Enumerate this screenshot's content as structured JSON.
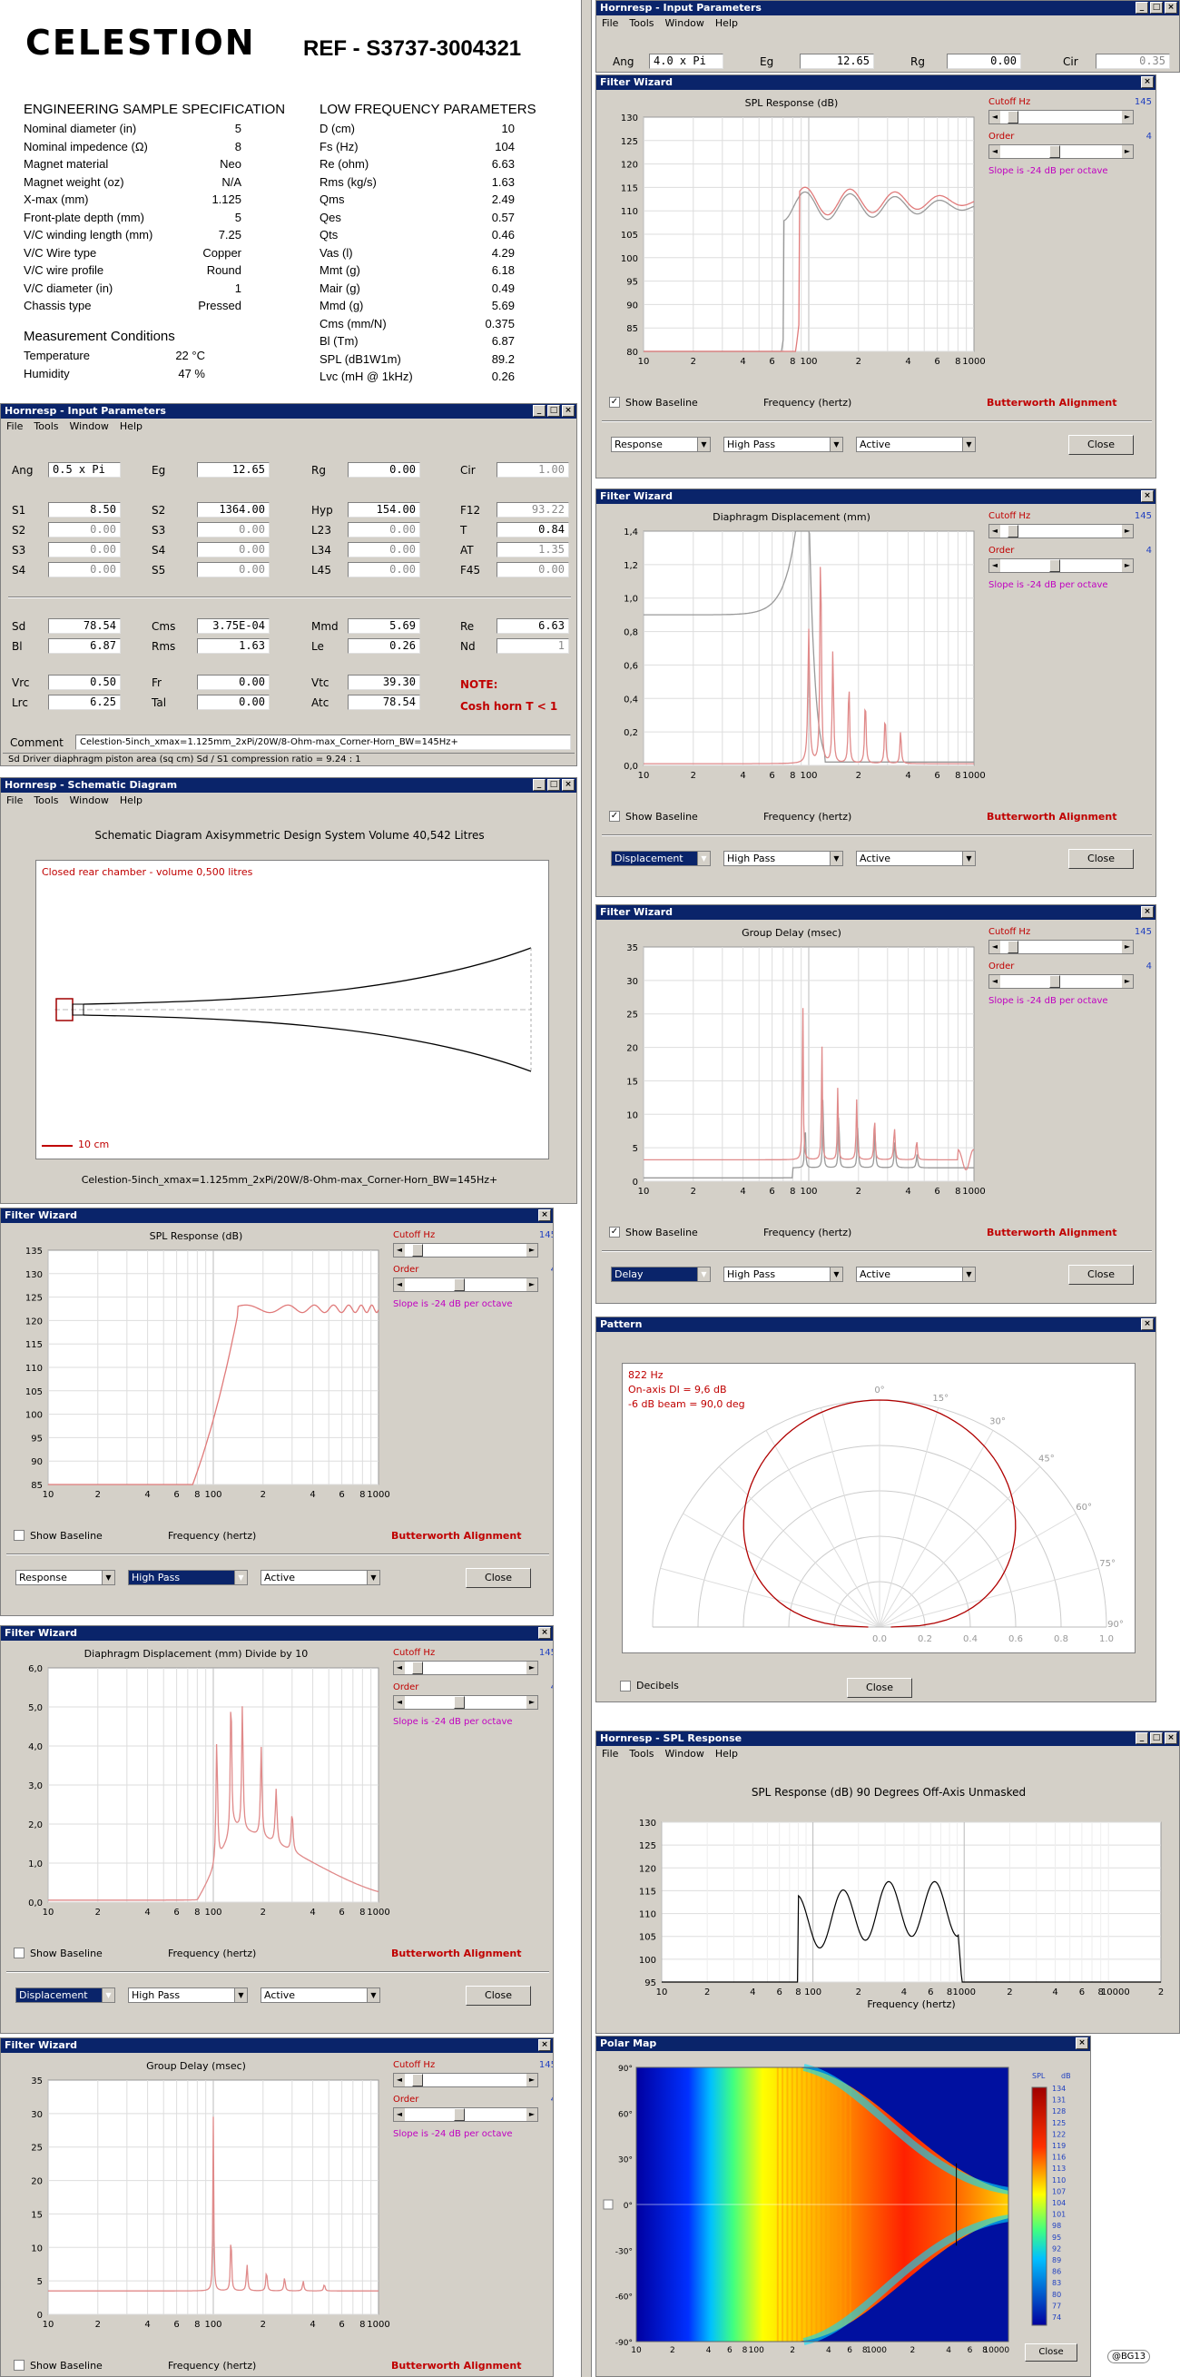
{
  "spec": {
    "logo": "CELESTION",
    "ref": "REF - S3737-3004321",
    "eng_title": "ENGINEERING SAMPLE SPECIFICATION",
    "lf_title": "LOW FREQUENCY PARAMETERS",
    "eng_rows": [
      [
        "Nominal diameter (in)",
        "5"
      ],
      [
        "Nominal impedence (Ω)",
        "8"
      ],
      [
        "Magnet material",
        "Neo"
      ],
      [
        "Magnet weight (oz)",
        "N/A"
      ],
      [
        "X-max (mm)",
        "1.125"
      ],
      [
        "Front-plate depth (mm)",
        "5"
      ],
      [
        "V/C winding length (mm)",
        "7.25"
      ],
      [
        "V/C Wire type",
        "Copper"
      ],
      [
        "V/C wire profile",
        "Round"
      ],
      [
        "V/C diameter (in)",
        "1"
      ],
      [
        "Chassis type",
        "Pressed"
      ]
    ],
    "meas_title": "Measurement Conditions",
    "meas_rows": [
      [
        "Temperature",
        "22 °C"
      ],
      [
        "Humidity",
        "47 %"
      ]
    ],
    "lf_rows": [
      [
        "D (cm)",
        "10"
      ],
      [
        "Fs (Hz)",
        "104"
      ],
      [
        "Re (ohm)",
        "6.63"
      ],
      [
        "Rms (kg/s)",
        "1.63"
      ],
      [
        "Qms",
        "2.49"
      ],
      [
        "Qes",
        "0.57"
      ],
      [
        "Qts",
        "0.46"
      ],
      [
        "Vas (l)",
        "4.29"
      ],
      [
        "Mmt (g)",
        "6.18"
      ],
      [
        "Mair (g)",
        "0.49"
      ],
      [
        "Mmd (g)",
        "5.69"
      ],
      [
        "Cms (mm/N)",
        "0.375"
      ],
      [
        "Bl (Tm)",
        "6.87"
      ],
      [
        "SPL (dB1W1m)",
        "89.2"
      ],
      [
        "Lvc (mH @ 1kHz)",
        "0.26"
      ]
    ]
  },
  "menus": [
    "File",
    "Tools",
    "Window",
    "Help"
  ],
  "input_left": {
    "title": "Hornresp - Input Parameters",
    "rows": [
      [
        [
          "Ang",
          "0.5 x Pi",
          0
        ],
        [
          "Eg",
          "12.65",
          0
        ],
        [
          "Rg",
          "0.00",
          0
        ],
        [
          "Cir",
          "1.00",
          1
        ]
      ],
      [
        [
          "S1",
          "8.50",
          0
        ],
        [
          "S2",
          "1364.00",
          0
        ],
        [
          "Hyp",
          "154.00",
          0
        ],
        [
          "F12",
          "93.22",
          1
        ]
      ],
      [
        [
          "S2",
          "0.00",
          1
        ],
        [
          "S3",
          "0.00",
          1
        ],
        [
          "L23",
          "0.00",
          1
        ],
        [
          "T",
          "0.84",
          0
        ]
      ],
      [
        [
          "S3",
          "0.00",
          1
        ],
        [
          "S4",
          "0.00",
          1
        ],
        [
          "L34",
          "0.00",
          1
        ],
        [
          "AT",
          "1.35",
          1
        ]
      ],
      [
        [
          "S4",
          "0.00",
          1
        ],
        [
          "S5",
          "0.00",
          1
        ],
        [
          "L45",
          "0.00",
          1
        ],
        [
          "F45",
          "0.00",
          1
        ]
      ],
      [
        [
          "Sd",
          "78.54",
          0
        ],
        [
          "Cms",
          "3.75E-04",
          0
        ],
        [
          "Mmd",
          "5.69",
          0
        ],
        [
          "Re",
          "6.63",
          0
        ]
      ],
      [
        [
          "Bl",
          "6.87",
          0
        ],
        [
          "Rms",
          "1.63",
          0
        ],
        [
          "Le",
          "0.26",
          0
        ],
        [
          "Nd",
          "1",
          1
        ]
      ],
      [
        [
          "Vrc",
          "0.50",
          0
        ],
        [
          "Fr",
          "0.00",
          0
        ],
        [
          "Vtc",
          "39.30",
          0
        ],
        [
          "",
          "",
          0
        ]
      ],
      [
        [
          "Lrc",
          "6.25",
          0
        ],
        [
          "Tal",
          "0.00",
          0
        ],
        [
          "Atc",
          "78.54",
          0
        ],
        [
          "",
          "",
          0
        ]
      ]
    ],
    "note": "NOTE:",
    "note2": "Cosh horn  T < 1",
    "comment_label": "Comment",
    "comment": "Celestion-5inch_xmax=1.125mm_2xPi/20W/8-Ohm-max_Corner-Horn_BW=145Hz+",
    "status": "Sd  Driver diaphragm piston area  (sq cm)     Sd / S1 compression ratio = 9.24 : 1"
  },
  "input_right": {
    "title": "Hornresp - Input Parameters",
    "ang": "4.0 x Pi",
    "eg": "12.65",
    "rg": "0.00",
    "cir": "0.35"
  },
  "schematic": {
    "title": "Hornresp - Schematic Diagram",
    "header": "Schematic Diagram    Axisymmetric Design    System Volume 40,542 Litres",
    "note": "Closed rear chamber - volume 0,500 litres",
    "scale": "10 cm",
    "caption": "Celestion-5inch_xmax=1.125mm_2xPi/20W/8-Ohm-max_Corner-Horn_BW=145Hz+"
  },
  "common": {
    "cutoff": "Cutoff  Hz",
    "cutoff_val": "145",
    "order": "Order",
    "order_val": "4",
    "slope": "Slope is -24 dB per octave",
    "baseline": "Show Baseline",
    "freq": "Frequency (hertz)",
    "align": "Butterworth Alignment",
    "hp": "High Pass",
    "active": "Active",
    "close": "Close",
    "fw_title": "Filter Wizard",
    "xticks": [
      "10",
      "2",
      "4",
      "6",
      "8",
      "100",
      "2",
      "4",
      "6",
      "8",
      "1000",
      "2"
    ]
  },
  "fw": [
    {
      "title": "SPL Response (dB)",
      "yticks": [
        "130",
        "125",
        "120",
        "115",
        "110",
        "105",
        "100",
        "95",
        "90",
        "85",
        "80"
      ],
      "mode": "Response"
    },
    {
      "title": "Diaphragm Displacement (mm)",
      "yticks": [
        "1,4",
        "1,2",
        "1,0",
        "0,8",
        "0,6",
        "0,4",
        "0,2",
        "0,0"
      ],
      "mode": "Displacement"
    },
    {
      "title": "Group Delay (msec)",
      "yticks": [
        "35",
        "30",
        "25",
        "20",
        "15",
        "10",
        "5",
        "0"
      ],
      "mode": "Delay"
    },
    {
      "title": "SPL Response (dB)",
      "yticks": [
        "135",
        "130",
        "125",
        "120",
        "115",
        "110",
        "105",
        "100",
        "95",
        "90",
        "85"
      ],
      "mode": "Response"
    },
    {
      "title": "Diaphragm Displacement (mm)   Divide by 10",
      "yticks": [
        "6,0",
        "5,0",
        "4,0",
        "3,0",
        "2,0",
        "1,0",
        "0,0"
      ],
      "mode": "Displacement"
    },
    {
      "title": "Group Delay (msec)",
      "yticks": [
        "35",
        "30",
        "25",
        "20",
        "15",
        "10",
        "5",
        "0"
      ],
      "mode": "Delay"
    }
  ],
  "pattern": {
    "title": "Pattern",
    "freq": "822 Hz",
    "di": "On-axis DI = 9,6 dB",
    "beam": "-6 dB beam = 90,0 deg",
    "decibels": "Decibels",
    "close": "Close",
    "angles": [
      "0°",
      "15°",
      "30°",
      "45°",
      "60°",
      "75°",
      "90°"
    ],
    "radial": [
      "0.0",
      "0.2",
      "0.4",
      "0.6",
      "0.8",
      "1.0"
    ]
  },
  "spl90": {
    "title": "Hornresp - SPL Response",
    "header": "SPL Response  (dB)    90 Degrees Off-Axis    Unmasked",
    "yticks": [
      "130",
      "125",
      "120",
      "115",
      "110",
      "105",
      "100",
      "95"
    ],
    "xticks": [
      "10",
      "2",
      "4",
      "6",
      "8",
      "100",
      "2",
      "4",
      "6",
      "8",
      "1000",
      "2",
      "4",
      "6",
      "8",
      "10000",
      "2"
    ]
  },
  "polarmap": {
    "title": "Polar Map",
    "unit1": "SPL",
    "unit2": "dB",
    "yticks": [
      "90°",
      "60°",
      "30°",
      "0°",
      "-30°",
      "-60°",
      "-90°"
    ],
    "xticks": [
      "10",
      "2",
      "4",
      "6",
      "8",
      "100",
      "2",
      "4",
      "6",
      "8",
      "1000",
      "2",
      "4",
      "6",
      "8",
      "10000"
    ],
    "scale": [
      "134",
      "131",
      "128",
      "125",
      "122",
      "119",
      "116",
      "113",
      "110",
      "107",
      "104",
      "101",
      "98",
      "95",
      "92",
      "89",
      "86",
      "83",
      "80",
      "77",
      "74"
    ],
    "close": "Close",
    "badge": "@BG13"
  }
}
